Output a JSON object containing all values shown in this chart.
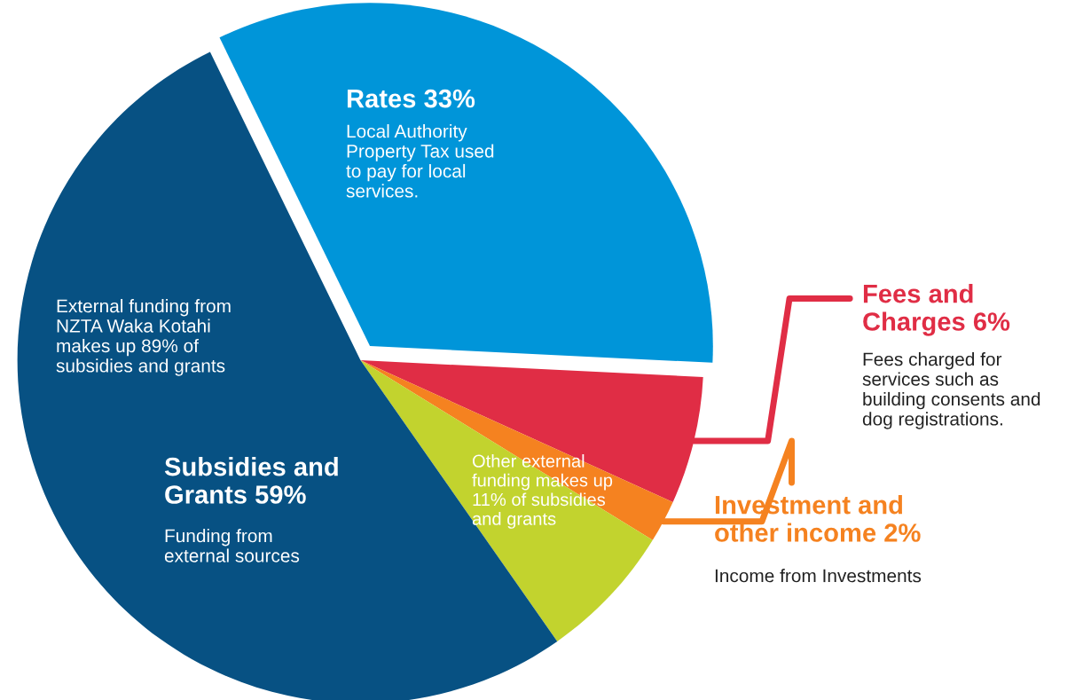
{
  "chart_data": {
    "type": "pie",
    "categories": [
      "Rates 33%",
      "Fees and\nCharges 6%",
      "Investment and\nother income 2%",
      "Other external\nfunding makes up\n11% of subsidies\nand grants",
      "External funding from\nNZTA Waka Kotahi\nmakes up 89% of\nsubsidies and grants"
    ],
    "values": [
      33,
      6,
      2,
      6.5,
      52.5
    ],
    "colors": [
      "#0095d9",
      "#e02d45",
      "#f58220",
      "#c2d32e",
      "#075183"
    ],
    "annotations": [
      "Local Authority\nProperty Tax used\nto pay for local\nservices.",
      "Fees charged for\nservices such as\nbuilding consents and\ndog registrations.",
      "Income from Investments",
      "Subsidies and\nGrants 59%",
      "Funding from\nexternal sources"
    ]
  }
}
